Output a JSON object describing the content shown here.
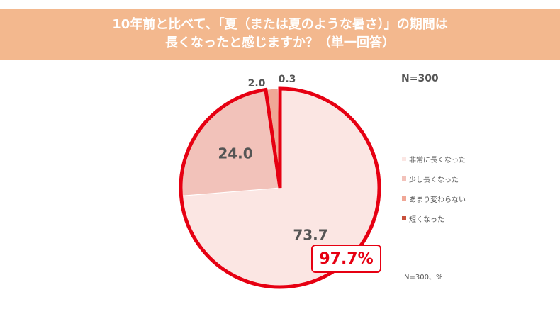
{
  "title": {
    "line1": "10年前と比べて、「夏（または夏のような暑さ）」の期間は",
    "line2": "長くなったと感じますか？（単一回答）"
  },
  "sample_top": "N=300",
  "sample_bottom": "N=300、%",
  "callout": "97.7%",
  "colors": {
    "accent_red": "#e60012",
    "title_band": "#f3b88e"
  },
  "chart_data": {
    "type": "pie",
    "title": "10年前と比べて、「夏（または夏のような暑さ）」の期間は長くなったと感じますか？（単一回答）",
    "labels": [
      "非常に長くなった",
      "少し長くなった",
      "あまり変わらない",
      "短くなった"
    ],
    "values": [
      73.7,
      24.0,
      2.0,
      0.3
    ],
    "value_labels": [
      "73.7",
      "24.0",
      "2.0",
      "0.3"
    ],
    "colors": [
      "#fbe6e3",
      "#f2c2ba",
      "#f0a796",
      "#c8503c"
    ],
    "start": "12 o'clock",
    "direction": "clockwise",
    "legend_position": "right"
  }
}
